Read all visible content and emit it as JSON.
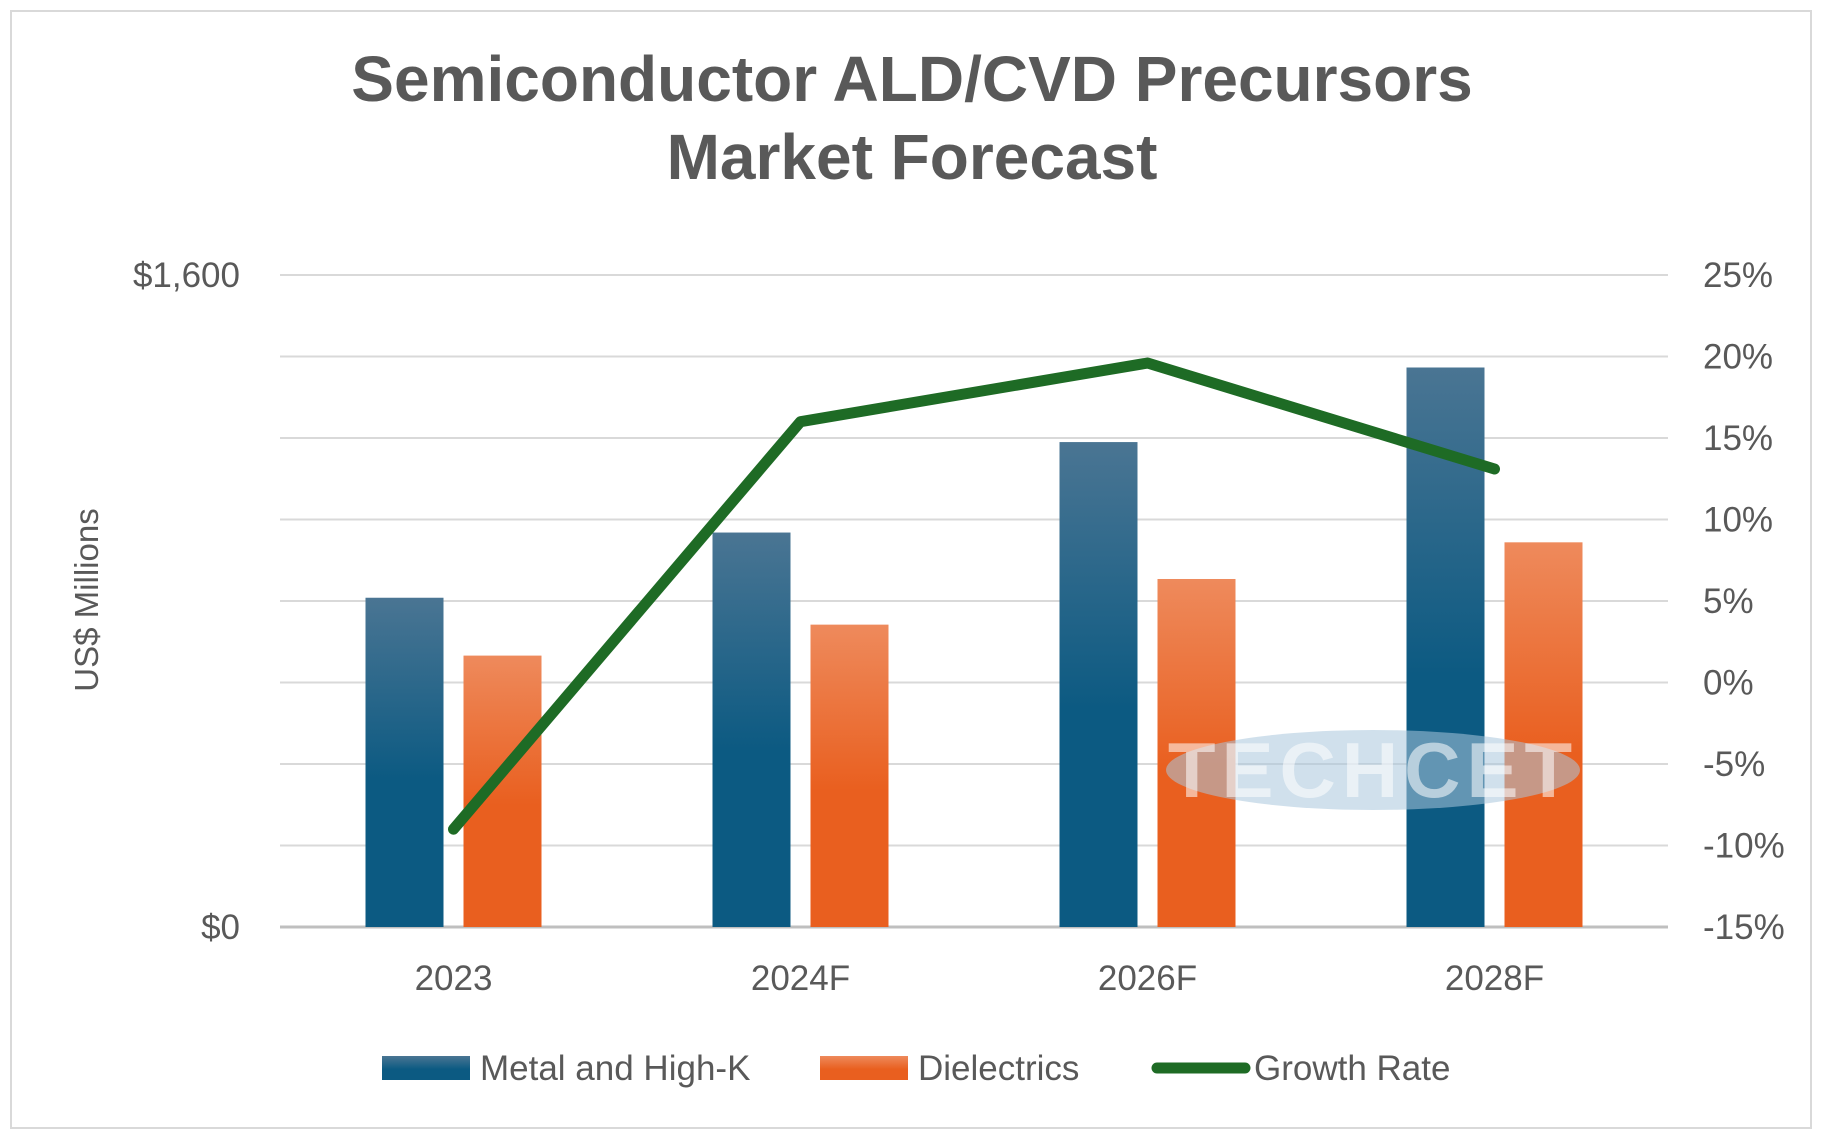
{
  "chart_data": {
    "type": "bar",
    "title": [
      "Semiconductor ALD/CVD Precursors",
      "Market Forecast"
    ],
    "categories": [
      "2023",
      "2024F",
      "2026F",
      "2028F"
    ],
    "series": [
      {
        "name": "Metal and High-K",
        "kind": "bar",
        "axis": "left",
        "values": [
          808,
          968,
          1190,
          1373
        ],
        "color_top": "#4a7593",
        "color_bottom": "#0c5a82"
      },
      {
        "name": "Dielectrics",
        "kind": "bar",
        "axis": "left",
        "values": [
          666,
          742,
          854,
          944
        ],
        "color_top": "#ee8a5c",
        "color_bottom": "#e95f1f"
      },
      {
        "name": "Growth Rate",
        "kind": "line",
        "axis": "right",
        "values": [
          -9,
          16,
          19.6,
          13.1
        ],
        "color": "#1e6b25"
      }
    ],
    "y_left": {
      "label": "US$ Millions",
      "min": 0,
      "max": 1600,
      "tick_labels": [
        "$0",
        "$1,600"
      ]
    },
    "y_right": {
      "min": -15,
      "max": 25,
      "tick_labels": [
        "-15%",
        "-10%",
        "-5%",
        "0%",
        "5%",
        "10%",
        "15%",
        "20%",
        "25%"
      ]
    },
    "gridlines": 9,
    "legend_position": "bottom",
    "watermark": "TECHCET"
  }
}
